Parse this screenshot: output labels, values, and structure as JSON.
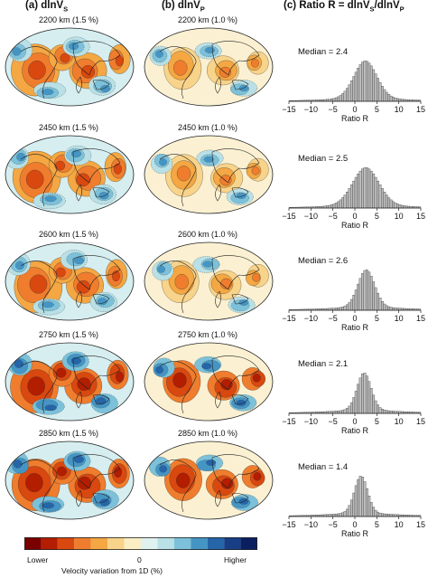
{
  "columns": {
    "a": {
      "prefix": "(a) dlnV",
      "sub": "S"
    },
    "b": {
      "prefix": "(b) dlnV",
      "sub": "P"
    },
    "c": {
      "prefix": "(c) Ratio R = dlnV",
      "mid": "/dlnV",
      "sub1": "S",
      "sub2": "P"
    }
  },
  "rows": [
    {
      "s_label": "2200 km (1.5 %)",
      "p_label": "2200 km (1.0 %)",
      "median": "Median = 2.4"
    },
    {
      "s_label": "2450 km (1.5 %)",
      "p_label": "2450 km (1.0 %)",
      "median": "Median = 2.5"
    },
    {
      "s_label": "2600 km (1.5 %)",
      "p_label": "2600 km (1.0 %)",
      "median": "Median = 2.6"
    },
    {
      "s_label": "2750 km (1.5 %)",
      "p_label": "2750 km (1.0 %)",
      "median": "Median = 2.1"
    },
    {
      "s_label": "2850 km (1.5 %)",
      "p_label": "2850 km (1.0 %)",
      "median": "Median = 1.4"
    }
  ],
  "histogram_axis": {
    "ticks": [
      "−15",
      "−10",
      "−5",
      "0",
      "5",
      "10",
      "15"
    ],
    "xlabel": "Ratio R",
    "xlim": [
      -15,
      15
    ]
  },
  "colorbar": {
    "low_label": "Lower",
    "mid_label": "0",
    "high_label": "Higher",
    "title": "Velocity variation from 1D (%)",
    "colors": [
      "#7a0000",
      "#b31d00",
      "#d9480f",
      "#ef7d2d",
      "#f4a742",
      "#f8d38a",
      "#fbeec4",
      "#dff2ef",
      "#b8e0e6",
      "#7cc1d9",
      "#4595c4",
      "#2565a8",
      "#183f86",
      "#0b1f60"
    ]
  },
  "chart_data": [
    {
      "type": "bar",
      "title": "Median = 2.4",
      "xlabel": "Ratio R",
      "xlim": [
        -15,
        15
      ],
      "median": 2.4,
      "peak": 2.4,
      "width": 2.6
    },
    {
      "type": "bar",
      "title": "Median = 2.5",
      "xlabel": "Ratio R",
      "xlim": [
        -15,
        15
      ],
      "median": 2.5,
      "peak": 2.5,
      "width": 3.0
    },
    {
      "type": "bar",
      "title": "Median = 2.6",
      "xlabel": "Ratio R",
      "xlim": [
        -15,
        15
      ],
      "median": 2.6,
      "peak": 2.6,
      "width": 1.9
    },
    {
      "type": "bar",
      "title": "Median = 2.1",
      "xlabel": "Ratio R",
      "xlim": [
        -15,
        15
      ],
      "median": 2.1,
      "peak": 2.1,
      "width": 1.6
    },
    {
      "type": "bar",
      "title": "Median = 1.4",
      "xlabel": "Ratio R",
      "xlim": [
        -15,
        15
      ],
      "median": 1.4,
      "peak": 1.4,
      "width": 1.5
    }
  ]
}
